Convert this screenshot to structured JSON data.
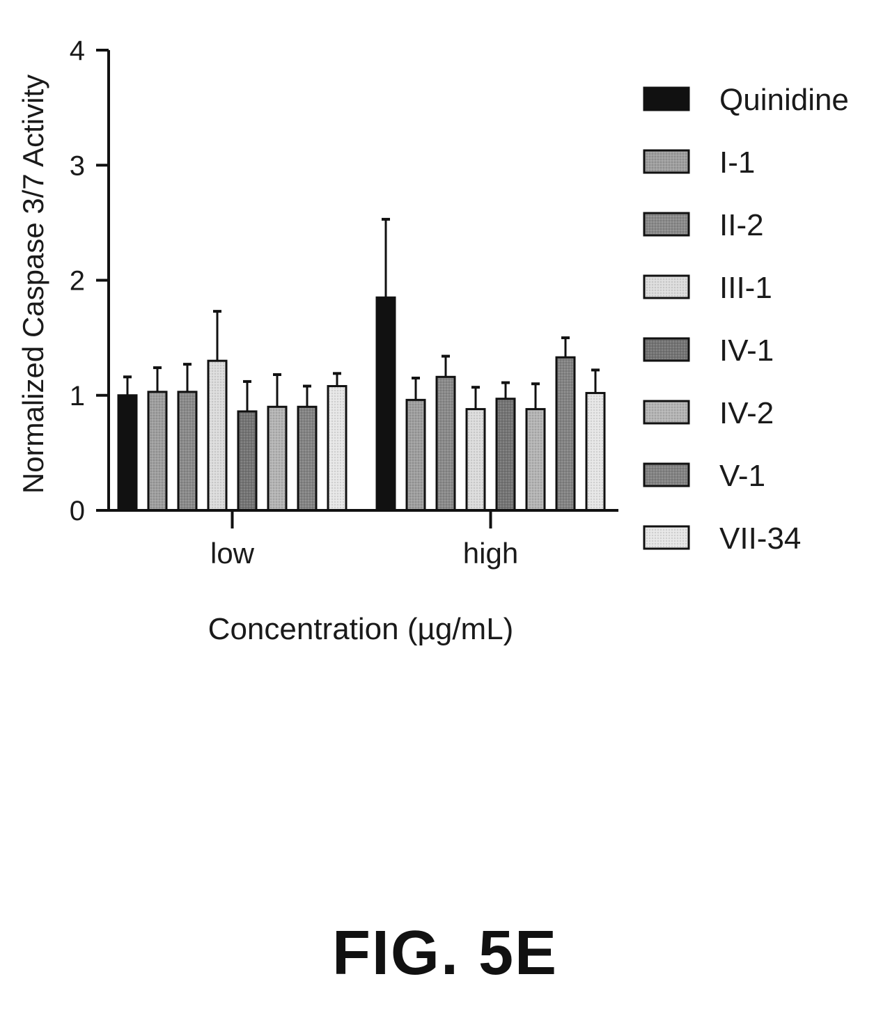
{
  "figure_label": "FIG. 5E",
  "colors": {
    "Quinidine": "#111111",
    "I-1": "#9e9e9e",
    "II-2": "#8a8a8a",
    "III-1": "#dcdcdc",
    "IV-1": "#747474",
    "IV-2": "#b4b4b4",
    "V-1": "#838383",
    "VII-34": "#e6e6e6"
  },
  "chart_data": {
    "type": "bar",
    "title": "",
    "xlabel": "Concentration (µg/mL)",
    "ylabel": "Normalized Caspase 3/7 Activity",
    "ylim": [
      0,
      4
    ],
    "yticks": [
      0,
      1,
      2,
      3,
      4
    ],
    "categories": [
      "low",
      "high"
    ],
    "legend_position": "right",
    "error_bars": true,
    "series": [
      {
        "name": "Quinidine",
        "values": [
          1.0,
          1.85
        ],
        "errors": [
          0.16,
          0.68
        ]
      },
      {
        "name": "I-1",
        "values": [
          1.03,
          0.96
        ],
        "errors": [
          0.21,
          0.19
        ]
      },
      {
        "name": "II-2",
        "values": [
          1.03,
          1.16
        ],
        "errors": [
          0.24,
          0.18
        ]
      },
      {
        "name": "III-1",
        "values": [
          1.3,
          0.88
        ],
        "errors": [
          0.43,
          0.19
        ]
      },
      {
        "name": "IV-1",
        "values": [
          0.86,
          0.97
        ],
        "errors": [
          0.26,
          0.14
        ]
      },
      {
        "name": "IV-2",
        "values": [
          0.9,
          0.88
        ],
        "errors": [
          0.28,
          0.22
        ]
      },
      {
        "name": "V-1",
        "values": [
          0.9,
          1.33
        ],
        "errors": [
          0.18,
          0.17
        ]
      },
      {
        "name": "VII-34",
        "values": [
          1.08,
          1.02
        ],
        "errors": [
          0.11,
          0.2
        ]
      }
    ]
  }
}
